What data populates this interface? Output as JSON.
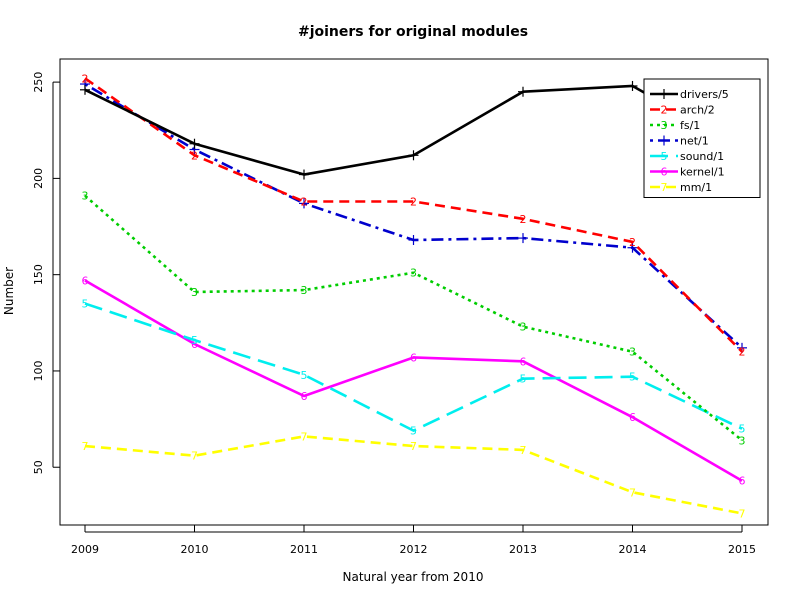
{
  "chart_data": {
    "type": "line",
    "title": "#joiners for original modules",
    "xlabel": "Natural year from 2010",
    "ylabel": "Number",
    "x": [
      2009,
      2010,
      2011,
      2012,
      2013,
      2014,
      2015
    ],
    "x_tick_labels": [
      "2009",
      "2010",
      "2011",
      "2012",
      "2013",
      "2014",
      "2015"
    ],
    "y_ticks": [
      50,
      100,
      150,
      200,
      250
    ],
    "xlim": [
      2009,
      2015
    ],
    "ylim": [
      20,
      262
    ],
    "grid": false,
    "legend_position": "top-right",
    "series": [
      {
        "name": "drivers/5",
        "symbol": "+",
        "color": "#000000",
        "dash": "solid",
        "values": [
          246,
          218,
          202,
          212,
          245,
          248,
          216
        ]
      },
      {
        "name": "arch/2",
        "symbol": "2",
        "color": "#ff0000",
        "dash": "dashed",
        "values": [
          252,
          212,
          188,
          188,
          179,
          167,
          110
        ]
      },
      {
        "name": "fs/1",
        "symbol": "3",
        "color": "#00cd00",
        "dash": "dotted",
        "values": [
          191,
          141,
          142,
          151,
          123,
          110,
          64
        ]
      },
      {
        "name": "net/1",
        "symbol": "+",
        "color": "#0000cd",
        "dash": "dotdash",
        "values": [
          249,
          215,
          187,
          168,
          169,
          164,
          112
        ]
      },
      {
        "name": "sound/1",
        "symbol": "5",
        "color": "#00eeee",
        "dash": "longdash",
        "values": [
          135,
          116,
          98,
          69,
          96,
          97,
          70
        ]
      },
      {
        "name": "kernel/1",
        "symbol": "6",
        "color": "#ff00ff",
        "dash": "solid",
        "values": [
          147,
          114,
          87,
          107,
          105,
          76,
          43
        ]
      },
      {
        "name": "mm/1",
        "symbol": "7",
        "color": "#ffff00",
        "dash": "dashed",
        "values": [
          61,
          56,
          66,
          61,
          59,
          37,
          26
        ]
      }
    ]
  }
}
